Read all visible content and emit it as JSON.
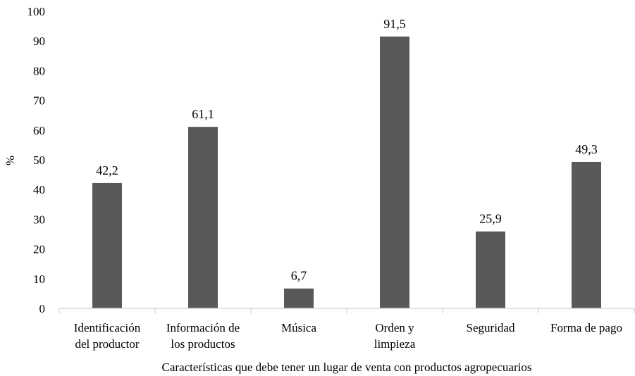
{
  "chart_data": {
    "type": "bar",
    "categories": [
      [
        "Identificación",
        "del productor"
      ],
      [
        "Información de",
        "los productos"
      ],
      [
        "Música"
      ],
      [
        "Orden y",
        "limpieza"
      ],
      [
        "Seguridad"
      ],
      [
        "Forma de pago"
      ]
    ],
    "values": [
      42.2,
      61.1,
      6.7,
      91.5,
      25.9,
      49.3
    ],
    "value_labels": [
      "42,2",
      "61,1",
      "6,7",
      "91,5",
      "25,9",
      "49,3"
    ],
    "title": "",
    "xlabel": "Características que debe tener un lugar de venta con productos agropecuarios",
    "ylabel": "%",
    "ylim": [
      0,
      100
    ],
    "yticks": [
      "0",
      "10",
      "20",
      "30",
      "40",
      "50",
      "60",
      "70",
      "80",
      "90",
      "100"
    ],
    "grid": false,
    "legend": "none",
    "bar_color": "#595959"
  }
}
